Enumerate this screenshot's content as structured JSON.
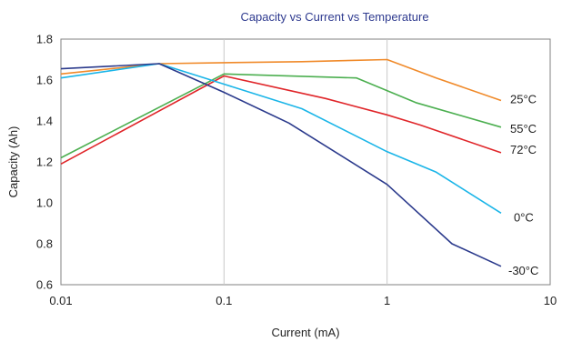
{
  "chart_data": {
    "type": "line",
    "title": "Capacity vs Current vs Temperature",
    "xlabel": "Current (mA)",
    "ylabel": "Capacity (Ah)",
    "xscale": "log",
    "xlim": [
      0.01,
      10
    ],
    "ylim": [
      0.6,
      1.8
    ],
    "xticks": [
      0.01,
      0.1,
      1,
      10
    ],
    "xtick_labels": [
      "0.01",
      "0.1",
      "1",
      "10"
    ],
    "yticks": [
      0.6,
      0.8,
      1.0,
      1.2,
      1.4,
      1.6,
      1.8
    ],
    "ytick_labels": [
      "0.6",
      "0.8",
      "1.0",
      "1.2",
      "1.4",
      "1.6",
      "1.8"
    ],
    "grid": "vertical",
    "legend": "labels at line ends",
    "series": [
      {
        "name": "25°C",
        "color": "#f08a2a",
        "points": [
          [
            0.01,
            1.63
          ],
          [
            0.04,
            1.68
          ],
          [
            0.1,
            1.685
          ],
          [
            0.3,
            1.69
          ],
          [
            1.0,
            1.7
          ],
          [
            2.0,
            1.61
          ],
          [
            5.0,
            1.5
          ]
        ]
      },
      {
        "name": "55°C",
        "color": "#4caf50",
        "points": [
          [
            0.01,
            1.22
          ],
          [
            0.1,
            1.63
          ],
          [
            0.65,
            1.61
          ],
          [
            1.5,
            1.49
          ],
          [
            5.0,
            1.37
          ]
        ]
      },
      {
        "name": "72°C",
        "color": "#e0262a",
        "points": [
          [
            0.01,
            1.19
          ],
          [
            0.1,
            1.62
          ],
          [
            0.42,
            1.51
          ],
          [
            1.0,
            1.43
          ],
          [
            1.6,
            1.38
          ],
          [
            5.0,
            1.245
          ]
        ]
      },
      {
        "name": "0°C",
        "color": "#1ab5e8",
        "points": [
          [
            0.01,
            1.61
          ],
          [
            0.04,
            1.68
          ],
          [
            0.1,
            1.58
          ],
          [
            0.3,
            1.46
          ],
          [
            1.0,
            1.25
          ],
          [
            2.0,
            1.15
          ],
          [
            5.0,
            0.95
          ]
        ]
      },
      {
        "name": "-30°C",
        "color": "#2b3a8c",
        "points": [
          [
            0.01,
            1.655
          ],
          [
            0.04,
            1.68
          ],
          [
            0.1,
            1.54
          ],
          [
            0.25,
            1.39
          ],
          [
            1.0,
            1.09
          ],
          [
            2.5,
            0.8
          ],
          [
            5.0,
            0.69
          ]
        ]
      }
    ]
  }
}
